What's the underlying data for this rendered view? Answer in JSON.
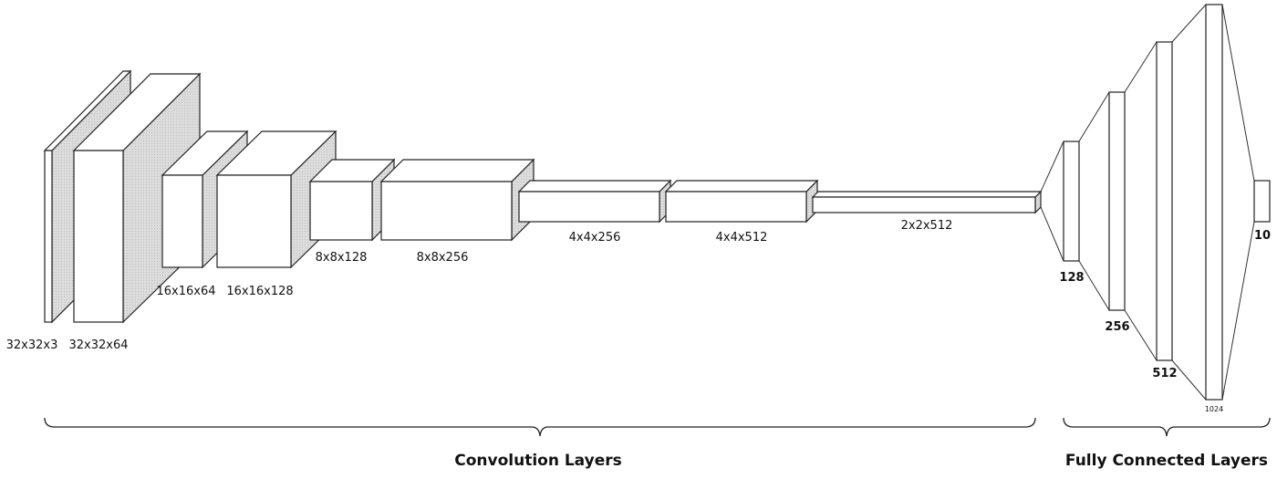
{
  "conv_layers": [
    {
      "label": "32x32x3"
    },
    {
      "label": "32x32x64"
    },
    {
      "label": "16x16x64"
    },
    {
      "label": "16x16x128"
    },
    {
      "label": "8x8x128"
    },
    {
      "label": "8x8x256"
    },
    {
      "label": "4x4x256"
    },
    {
      "label": "4x4x512"
    },
    {
      "label": "2x2x512"
    }
  ],
  "fc_layers": [
    {
      "label": "128"
    },
    {
      "label": "256"
    },
    {
      "label": "512"
    },
    {
      "label": "1024"
    },
    {
      "label": "10"
    }
  ],
  "groups": {
    "conv": "Convolution Layers",
    "fc": "Fully Connected Layers"
  },
  "colors": {
    "side_fill": "#d9d9d9",
    "edge": "#222222"
  }
}
